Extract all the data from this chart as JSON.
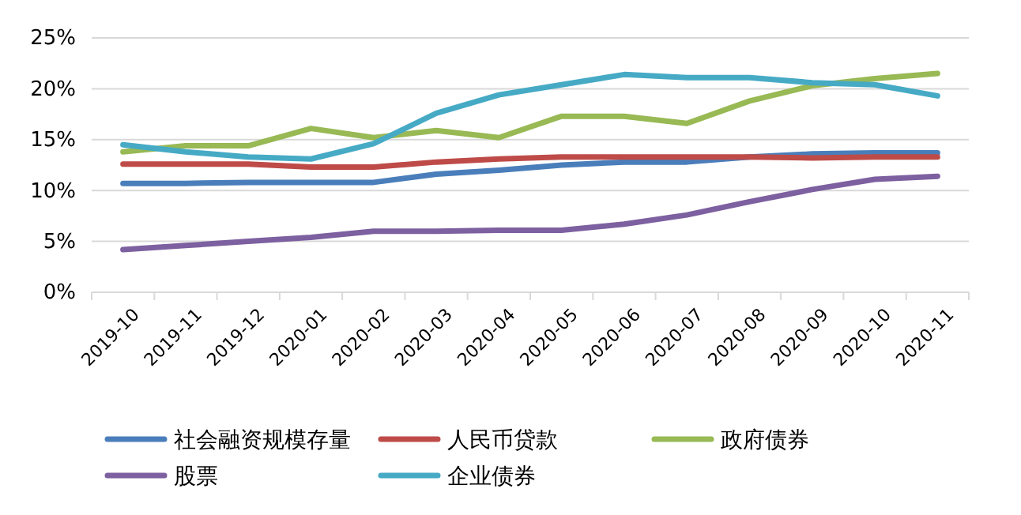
{
  "chart_data": {
    "type": "line",
    "categories": [
      "2019-10",
      "2019-11",
      "2019-12",
      "2020-01",
      "2020-02",
      "2020-03",
      "2020-04",
      "2020-05",
      "2020-06",
      "2020-07",
      "2020-08",
      "2020-09",
      "2020-10",
      "2020-11"
    ],
    "series": [
      {
        "name": "社会融资规模存量",
        "color": "#4a7ebb",
        "values": [
          10.7,
          10.7,
          10.8,
          10.8,
          10.8,
          11.6,
          12.0,
          12.5,
          12.8,
          12.8,
          13.3,
          13.6,
          13.7,
          13.7
        ]
      },
      {
        "name": "人民币贷款",
        "color": "#be4b48",
        "values": [
          12.6,
          12.6,
          12.6,
          12.3,
          12.3,
          12.8,
          13.1,
          13.3,
          13.3,
          13.3,
          13.3,
          13.2,
          13.3,
          13.3
        ]
      },
      {
        "name": "政府债券",
        "color": "#98b954",
        "values": [
          13.8,
          14.4,
          14.4,
          16.1,
          15.2,
          15.9,
          15.2,
          17.3,
          17.3,
          16.6,
          18.8,
          20.3,
          21.0,
          21.5
        ]
      },
      {
        "name": "股票",
        "color": "#7d60a0",
        "values": [
          4.2,
          4.6,
          5.0,
          5.4,
          6.0,
          6.0,
          6.1,
          6.1,
          6.7,
          7.6,
          8.9,
          10.1,
          11.1,
          11.4
        ]
      },
      {
        "name": "企业债券",
        "color": "#46aac5",
        "values": [
          14.5,
          13.8,
          13.3,
          13.1,
          14.6,
          17.6,
          19.4,
          20.4,
          21.4,
          21.1,
          21.1,
          20.6,
          20.4,
          19.3
        ]
      }
    ],
    "ylim": [
      0,
      25
    ],
    "yticks": [
      {
        "value": 0,
        "label": "0%"
      },
      {
        "value": 5,
        "label": "5%"
      },
      {
        "value": 10,
        "label": "10%"
      },
      {
        "value": 15,
        "label": "15%"
      },
      {
        "value": 20,
        "label": "20%"
      },
      {
        "value": 25,
        "label": "25%"
      }
    ],
    "grid": "y",
    "legend": "bottom",
    "marker": "none",
    "line_style": "solid"
  }
}
